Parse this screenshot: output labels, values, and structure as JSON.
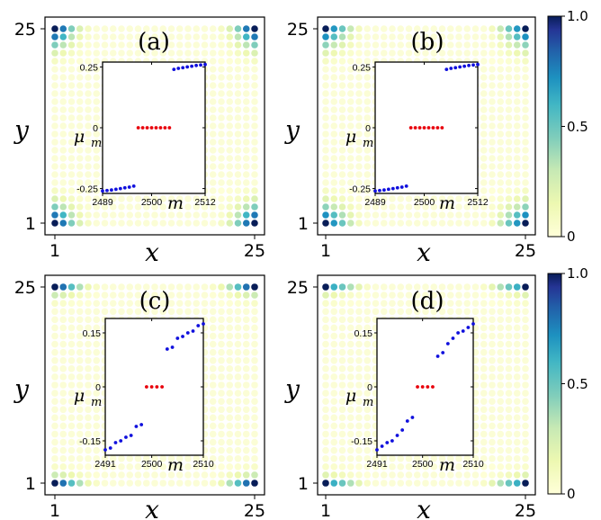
{
  "colors": {
    "background_dot": "#fbfdd6",
    "scale_low": "#ffffd9",
    "scale_mid": "#41b6c4",
    "scale_high": "#081d58",
    "inner_point": "#e8000b",
    "outer_point": "#1010dd"
  },
  "colorbars": [
    {
      "ticks": [
        "0",
        "0.5",
        "1.0"
      ],
      "values": [
        0,
        0.5,
        1.0
      ]
    },
    {
      "ticks": [
        "0",
        "0.5",
        "1.0"
      ],
      "values": [
        0,
        0.5,
        1.0
      ]
    }
  ],
  "chart_data": [
    {
      "type": "heatmap",
      "panel_label": "(a)",
      "xlabel": "x",
      "ylabel": "y",
      "x_ticks": [
        "1",
        "25"
      ],
      "y_ticks": [
        "1",
        "25"
      ],
      "grid_size": 25,
      "corner_weights": [
        [
          1.0,
          0.78,
          0.45,
          0.22,
          0.08
        ],
        [
          0.78,
          0.6,
          0.32,
          0.14,
          0.05
        ],
        [
          0.45,
          0.32,
          0.18,
          0.08,
          0.03
        ],
        [
          0.22,
          0.14,
          0.08,
          0.04,
          0.02
        ],
        [
          0.08,
          0.05,
          0.03,
          0.02,
          0.01
        ]
      ],
      "inset": {
        "type": "scatter",
        "xlabel": "m",
        "ylabel_main": "μ",
        "ylabel_sub": "m",
        "x_tick_labels": [
          "2489",
          "2500",
          "2512"
        ],
        "x_tick_values": [
          2489,
          2500,
          2512
        ],
        "y_tick_labels": [
          "-0.25",
          "0",
          "0.25"
        ],
        "y_tick_values": [
          -0.25,
          0,
          0.25
        ],
        "xlim": [
          2489,
          2512
        ],
        "ylim": [
          -0.27,
          0.27
        ],
        "series": [
          {
            "role": "outer",
            "x": [
              2489,
              2490,
              2491,
              2492,
              2493,
              2494,
              2495,
              2496
            ],
            "y": [
              -0.26,
              -0.258,
              -0.256,
              -0.253,
              -0.25,
              -0.247,
              -0.244,
              -0.24
            ]
          },
          {
            "role": "inner",
            "x": [
              2497,
              2498,
              2499,
              2500,
              2501,
              2502,
              2503,
              2504
            ],
            "y": [
              0,
              0,
              0,
              0,
              0,
              0,
              0,
              0
            ]
          },
          {
            "role": "outer",
            "x": [
              2505,
              2506,
              2507,
              2508,
              2509,
              2510,
              2511,
              2512
            ],
            "y": [
              0.24,
              0.244,
              0.247,
              0.25,
              0.253,
              0.256,
              0.258,
              0.26
            ]
          }
        ]
      }
    },
    {
      "type": "heatmap",
      "panel_label": "(b)",
      "xlabel": "x",
      "ylabel": "y",
      "x_ticks": [
        "1",
        "25"
      ],
      "y_ticks": [
        "1",
        "25"
      ],
      "grid_size": 25,
      "corner_weights": [
        [
          1.0,
          0.7,
          0.5,
          0.3,
          0.1
        ],
        [
          0.72,
          0.55,
          0.35,
          0.18,
          0.06
        ],
        [
          0.42,
          0.3,
          0.2,
          0.1,
          0.04
        ],
        [
          0.2,
          0.14,
          0.09,
          0.05,
          0.02
        ],
        [
          0.08,
          0.05,
          0.03,
          0.02,
          0.01
        ]
      ],
      "inset": {
        "type": "scatter",
        "xlabel": "m",
        "ylabel_main": "μ",
        "ylabel_sub": "m",
        "x_tick_labels": [
          "2489",
          "2500",
          "2512"
        ],
        "x_tick_values": [
          2489,
          2500,
          2512
        ],
        "y_tick_labels": [
          "-0.25",
          "0",
          "0.25"
        ],
        "y_tick_values": [
          -0.25,
          0,
          0.25
        ],
        "xlim": [
          2489,
          2512
        ],
        "ylim": [
          -0.27,
          0.27
        ],
        "series": [
          {
            "role": "outer",
            "x": [
              2489,
              2490,
              2491,
              2492,
              2493,
              2494,
              2495,
              2496
            ],
            "y": [
              -0.26,
              -0.258,
              -0.256,
              -0.253,
              -0.25,
              -0.247,
              -0.244,
              -0.24
            ]
          },
          {
            "role": "inner",
            "x": [
              2497,
              2498,
              2499,
              2500,
              2501,
              2502,
              2503,
              2504
            ],
            "y": [
              0,
              0,
              0,
              0,
              0,
              0,
              0,
              0
            ]
          },
          {
            "role": "outer",
            "x": [
              2505,
              2506,
              2507,
              2508,
              2509,
              2510,
              2511,
              2512
            ],
            "y": [
              0.24,
              0.244,
              0.247,
              0.25,
              0.253,
              0.256,
              0.258,
              0.26
            ]
          }
        ]
      }
    },
    {
      "type": "heatmap",
      "panel_label": "(c)",
      "xlabel": "x",
      "ylabel": "y",
      "x_ticks": [
        "1",
        "25"
      ],
      "y_ticks": [
        "1",
        "25"
      ],
      "grid_size": 25,
      "corner_weights": [
        [
          1.0,
          0.8,
          0.55,
          0.35,
          0.15,
          0.06
        ],
        [
          0.28,
          0.22,
          0.15,
          0.09,
          0.04,
          0.02
        ],
        [
          0.06,
          0.05,
          0.03,
          0.02,
          0.01,
          0.0
        ]
      ],
      "inset": {
        "type": "scatter",
        "xlabel": "m",
        "ylabel_main": "μ",
        "ylabel_sub": "m",
        "x_tick_labels": [
          "2491",
          "2500",
          "2510"
        ],
        "x_tick_values": [
          2491,
          2500,
          2510
        ],
        "y_tick_labels": [
          "-0.15",
          "0",
          "0.15"
        ],
        "y_tick_values": [
          -0.15,
          0,
          0.15
        ],
        "xlim": [
          2491,
          2510
        ],
        "ylim": [
          -0.19,
          0.19
        ],
        "series": [
          {
            "role": "outer",
            "x": [
              2491,
              2492,
              2493,
              2494,
              2495,
              2496,
              2497,
              2498
            ],
            "y": [
              -0.175,
              -0.17,
              -0.155,
              -0.15,
              -0.14,
              -0.135,
              -0.11,
              -0.105
            ]
          },
          {
            "role": "inner",
            "x": [
              2499,
              2500,
              2501,
              2502
            ],
            "y": [
              0,
              0,
              0,
              0
            ]
          },
          {
            "role": "outer",
            "x": [
              2503,
              2504,
              2505,
              2506,
              2507,
              2508,
              2509,
              2510
            ],
            "y": [
              0.105,
              0.11,
              0.135,
              0.14,
              0.15,
              0.155,
              0.17,
              0.175
            ]
          }
        ]
      }
    },
    {
      "type": "heatmap",
      "panel_label": "(d)",
      "xlabel": "x",
      "ylabel": "y",
      "x_ticks": [
        "1",
        "25"
      ],
      "y_ticks": [
        "1",
        "25"
      ],
      "grid_size": 25,
      "corner_weights": [
        [
          1.0,
          0.62,
          0.5,
          0.35,
          0.18,
          0.06
        ],
        [
          0.2,
          0.15,
          0.1,
          0.06,
          0.03,
          0.01
        ],
        [
          0.05,
          0.04,
          0.03,
          0.02,
          0.01,
          0.0
        ]
      ],
      "inset": {
        "type": "scatter",
        "xlabel": "m",
        "ylabel_main": "μ",
        "ylabel_sub": "m",
        "x_tick_labels": [
          "2491",
          "2500",
          "2510"
        ],
        "x_tick_values": [
          2491,
          2500,
          2510
        ],
        "y_tick_labels": [
          "-0.15",
          "0",
          "0.15"
        ],
        "y_tick_values": [
          -0.15,
          0,
          0.15
        ],
        "xlim": [
          2491,
          2510
        ],
        "ylim": [
          -0.19,
          0.19
        ],
        "series": [
          {
            "role": "outer",
            "x": [
              2491,
              2492,
              2493,
              2494,
              2495,
              2496,
              2497,
              2498
            ],
            "y": [
              -0.175,
              -0.165,
              -0.155,
              -0.15,
              -0.135,
              -0.12,
              -0.095,
              -0.085
            ]
          },
          {
            "role": "inner",
            "x": [
              2499,
              2500,
              2501,
              2502
            ],
            "y": [
              0,
              0,
              0,
              0
            ]
          },
          {
            "role": "outer",
            "x": [
              2503,
              2504,
              2505,
              2506,
              2507,
              2508,
              2509,
              2510
            ],
            "y": [
              0.085,
              0.095,
              0.12,
              0.135,
              0.15,
              0.155,
              0.165,
              0.175
            ]
          }
        ]
      }
    }
  ]
}
